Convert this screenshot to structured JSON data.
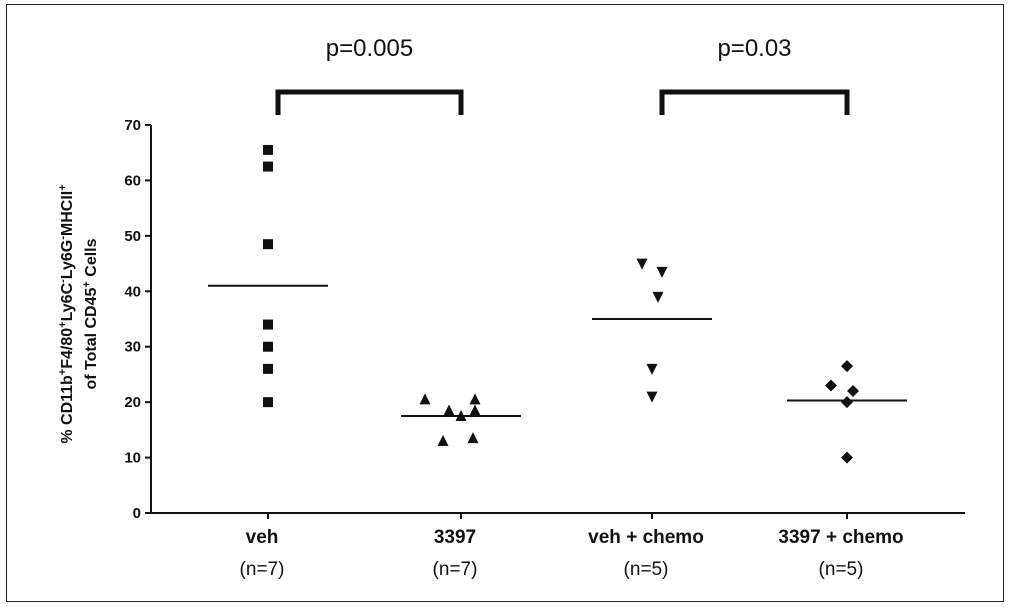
{
  "chart_data": {
    "type": "scatter",
    "ylabel_line1": "% CD11b+F4/80+Ly6C-Ly6G-MHCII+",
    "ylabel_line2": "of Total CD45+ Cells",
    "ylim": [
      0,
      70
    ],
    "yticks": [
      "0",
      "10",
      "20",
      "30",
      "40",
      "50",
      "60",
      "70"
    ],
    "grid": false,
    "groups": [
      {
        "label": "veh",
        "n": "(n=7)",
        "marker": "square",
        "values": [
          65.5,
          62.5,
          48.5,
          34,
          30,
          26,
          20
        ],
        "mean": 41
      },
      {
        "label": "3397",
        "n": "(n=7)",
        "marker": "triangle-up",
        "values": [
          20.5,
          20.5,
          18.5,
          18.5,
          17.5,
          13,
          13.5
        ],
        "mean": 17.5
      },
      {
        "label": "veh + chemo",
        "n": "(n=5)",
        "marker": "triangle-down",
        "values": [
          45,
          43.5,
          39,
          26,
          21
        ],
        "mean": 35
      },
      {
        "label": "3397 + chemo",
        "n": "(n=5)",
        "marker": "diamond",
        "values": [
          26.5,
          23,
          22,
          20,
          10
        ],
        "mean": 20.3
      }
    ],
    "comparisons": [
      {
        "from": 0,
        "to": 1,
        "label": "p=0.005"
      },
      {
        "from": 2,
        "to": 3,
        "label": "p=0.03"
      }
    ]
  }
}
